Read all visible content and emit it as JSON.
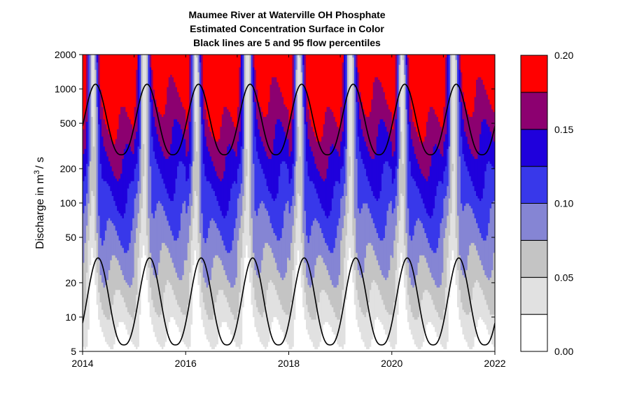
{
  "chart_data": {
    "type": "heatmap",
    "title": [
      "Maumee River at Waterville OH    Phosphate",
      "Estimated Concentration Surface in Color",
      "Black lines are 5 and 95 flow percentiles"
    ],
    "xlabel": "",
    "ylabel": "Discharge in m",
    "ylabel_sup": "3",
    "ylabel_suffix": "/ s",
    "xlim": [
      2014,
      2022
    ],
    "ylim": [
      5,
      2000
    ],
    "yscale": "log",
    "x_ticks": [
      2014,
      2016,
      2018,
      2020,
      2022
    ],
    "y_ticks": [
      5,
      10,
      20,
      50,
      100,
      200,
      500,
      1000,
      2000
    ],
    "colorbar": {
      "levels": [
        0.0,
        0.025,
        0.05,
        0.075,
        0.1,
        0.125,
        0.15,
        0.175,
        0.2
      ],
      "colors": [
        "#ffffff",
        "#e1e1e1",
        "#c4c4c4",
        "#8585d4",
        "#3838ea",
        "#1f00dc",
        "#8c0070",
        "#ff0000"
      ],
      "tick_labels": [
        "0.00",
        "0.05",
        "0.10",
        "0.15",
        "0.20"
      ],
      "tick_values": [
        0.0,
        0.05,
        0.1,
        0.15,
        0.2
      ]
    },
    "surface": {
      "description_free": true,
      "peak_time_of_year": 0.2,
      "trough_time_of_year": 0.75
    },
    "percentile_95": {
      "peak": 1100,
      "trough": 265,
      "peak_time_of_year": 0.25,
      "trough_time_of_year": 0.78
    },
    "percentile_5": {
      "peak": 33,
      "trough": 5.7,
      "peak_time_of_year": 0.3,
      "trough_time_of_year": 0.78
    }
  }
}
